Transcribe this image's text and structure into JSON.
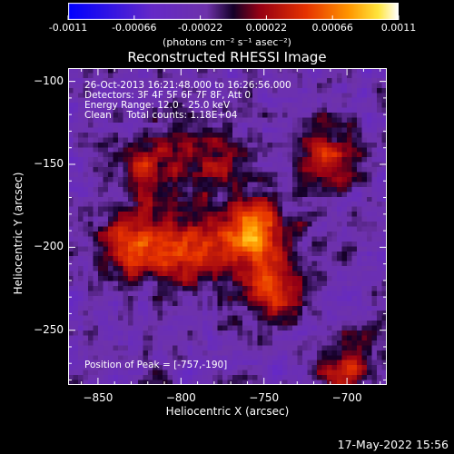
{
  "colorbar": {
    "ticks": [
      "-0.0011",
      "-0.00066",
      "-0.00022",
      "0.00022",
      "0.00066",
      "0.0011"
    ],
    "tick_values": [
      -0.0011,
      -0.00066,
      -0.00022,
      0.00022,
      0.00066,
      0.0011
    ],
    "unit_label": "(photons cm⁻² s⁻¹ asec⁻²)",
    "range": [
      -0.0011,
      0.0011
    ]
  },
  "image": {
    "title": "Reconstructed RHESSI Image",
    "info": {
      "time": "26-Oct-2013 16:21:48.000 to 16:26:56.000",
      "detectors": "Detectors: 3F 4F 5F 6F 7F 8F, Att 0",
      "energy": "Energy Range: 12.0 - 25.0 keV",
      "clean": "Clean     Total counts: 1.18E+04"
    },
    "peak": "Position of Peak = [-757,-190]",
    "peak_xy": [
      -757,
      -190
    ]
  },
  "chart_data": {
    "type": "heatmap",
    "title": "Reconstructed RHESSI Image",
    "xlabel": "Heliocentric X (arcsec)",
    "ylabel": "Heliocentric Y (arcsec)",
    "xlim": [
      -868,
      -676
    ],
    "ylim": [
      -283,
      -92
    ],
    "x_ticks": [
      -850,
      -800,
      -750,
      -700
    ],
    "y_ticks": [
      -250,
      -200,
      -150,
      -100
    ],
    "x_tick_labels": [
      "−850",
      "−800",
      "−750",
      "−700"
    ],
    "y_tick_labels": [
      "−250",
      "−200",
      "−150",
      "−100"
    ],
    "value_range": [
      -0.0011,
      0.0011
    ],
    "colormap": "red-temperature (negative: blue-violet, positive: red-orange-yellow-white)",
    "sources": [
      {
        "x": -757,
        "y": -190,
        "amplitude": 1.0
      },
      {
        "x": -795,
        "y": -200,
        "amplitude": 0.75
      },
      {
        "x": -827,
        "y": -197,
        "amplitude": 0.7
      },
      {
        "x": -745,
        "y": -225,
        "amplitude": 0.7
      },
      {
        "x": -712,
        "y": -145,
        "amplitude": 0.6
      },
      {
        "x": -818,
        "y": -150,
        "amplitude": 0.55
      },
      {
        "x": -700,
        "y": -275,
        "amplitude": 0.55
      },
      {
        "x": -780,
        "y": -145,
        "amplitude": 0.45
      }
    ]
  },
  "footer": {
    "timestamp": "17-May-2022 15:56"
  }
}
